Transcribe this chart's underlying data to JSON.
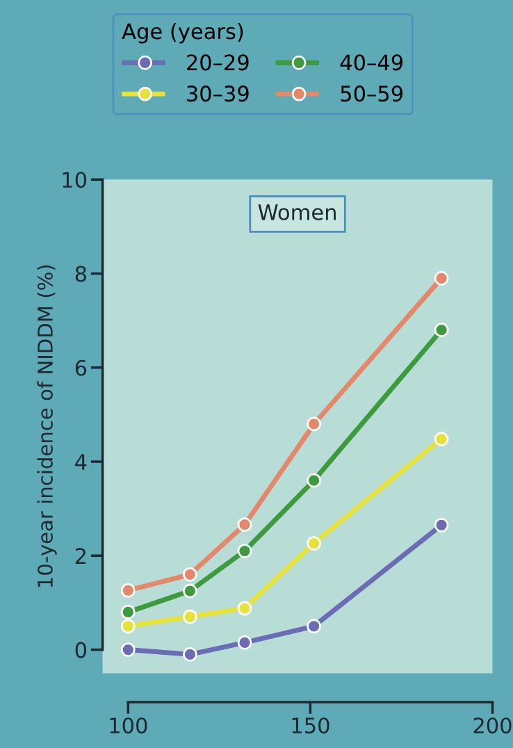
{
  "chart_data": {
    "type": "line",
    "ylabel": "10-year incidence of NIDDM (%)",
    "legend_title": "Age (years)",
    "annotations": [
      "Women"
    ],
    "x": [
      100,
      117,
      132,
      151,
      186
    ],
    "series": [
      {
        "name": "20–29",
        "color": "#6a6cb4",
        "values": [
          0,
          -0.1,
          0.15,
          0.5,
          2.65
        ]
      },
      {
        "name": "30–39",
        "color": "#e6e23c",
        "values": [
          0.5,
          0.7,
          0.88,
          2.26,
          4.48
        ]
      },
      {
        "name": "40–49",
        "color": "#3d9a3d",
        "values": [
          0.8,
          1.25,
          2.1,
          3.6,
          6.8
        ]
      },
      {
        "name": "50–59",
        "color": "#e4886c",
        "values": [
          1.26,
          1.6,
          2.66,
          4.8,
          7.9
        ]
      }
    ],
    "xlim": [
      93,
      200
    ],
    "xticks": [
      100,
      150,
      200
    ],
    "ylim": [
      -0.5,
      10
    ],
    "yticks": [
      0,
      2,
      4,
      6,
      8,
      10
    ],
    "grid": false,
    "legend": "top",
    "marker": "circle",
    "line_style": "solid"
  }
}
